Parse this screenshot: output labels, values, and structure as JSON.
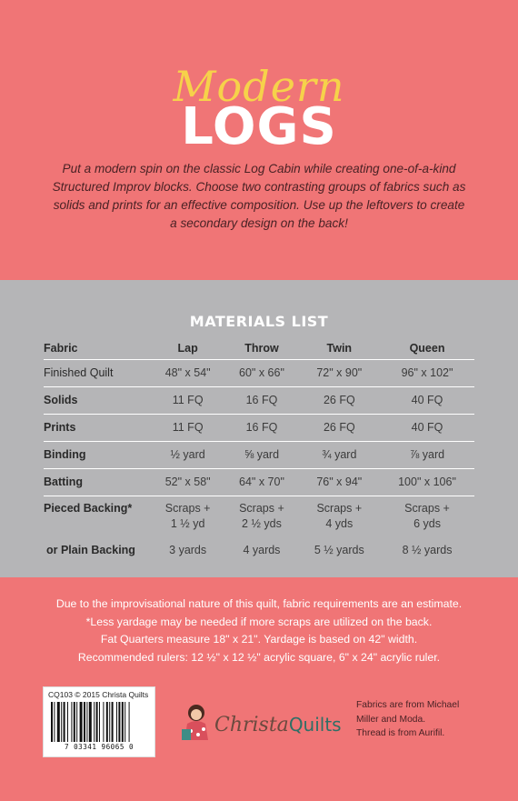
{
  "title": {
    "script": "Modern",
    "main": "LOGS"
  },
  "intro": "Put a modern spin on the classic Log Cabin while creating one-of-a-kind Structured Improv blocks. Choose two contrasting groups of fabrics such as solids and prints for an effective composition. Use up the leftovers to create a secondary design on the back!",
  "materials": {
    "heading": "MATERIALS LIST",
    "columns": [
      "Fabric",
      "Lap",
      "Throw",
      "Twin",
      "Queen"
    ],
    "rows": [
      {
        "label": "Finished Quilt",
        "values": [
          "48\" x 54\"",
          "60\" x 66\"",
          "72\" x 90\"",
          "96\" x 102\""
        ]
      },
      {
        "label": "Solids",
        "values": [
          "11 FQ",
          "16 FQ",
          "26 FQ",
          "40 FQ"
        ]
      },
      {
        "label": "Prints",
        "values": [
          "11 FQ",
          "16 FQ",
          "26 FQ",
          "40 FQ"
        ]
      },
      {
        "label": "Binding",
        "values": [
          "½ yard",
          "⅝ yard",
          "¾ yard",
          "⅞ yard"
        ]
      },
      {
        "label": "Batting",
        "values": [
          "52\" x 58\"",
          "64\" x 70\"",
          "76\" x 94\"",
          "100\" x 106\""
        ]
      },
      {
        "label": "Pieced Backing*",
        "values": [
          "Scraps +",
          "Scraps +",
          "Scraps +",
          "Scraps +"
        ],
        "values2": [
          "1 ½ yd",
          "2 ½ yds",
          "4 yds",
          "6 yds"
        ]
      },
      {
        "label": "or Plain Backing",
        "values": [
          "3  yards",
          "4 yards",
          "5 ½ yards",
          "8 ½ yards"
        ]
      }
    ]
  },
  "notes": [
    "Due to the improvisational nature of this quilt, fabric requirements are an estimate.",
    "*Less yardage may be needed if more scraps are utilized on the back.",
    "Fat Quarters measure 18\" x 21\". Yardage is based on 42\" width.",
    "Recommended rulers: 12 ½\" x 12 ½\" acrylic square, 6\" x 24\" acrylic ruler."
  ],
  "barcode": {
    "header": "CQ103 © 2015 Christa Quilts",
    "number": "7  03341  96065  0"
  },
  "logo": {
    "part1": "Christa",
    "part2": "Quilts"
  },
  "fabric_note": [
    "Fabrics are from Michael",
    "Miller and Moda.",
    "Thread is from Aurifil."
  ]
}
